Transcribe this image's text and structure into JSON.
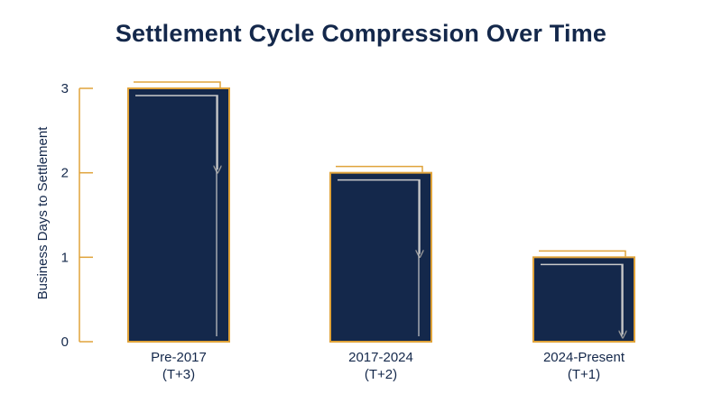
{
  "chart_data": {
    "type": "bar",
    "title": "Settlement Cycle Compression Over Time",
    "ylabel": "Business Days to Settlement",
    "xlabel": "",
    "ylim": [
      0,
      3
    ],
    "yticks": [
      "0",
      "1",
      "2",
      "3"
    ],
    "categories": [
      [
        "Pre-2017",
        "(T+3)"
      ],
      [
        "2017-2024",
        "(T+2)"
      ],
      [
        "2024-Present",
        "(T+1)"
      ]
    ],
    "values": [
      3,
      2,
      1
    ],
    "grid": false,
    "legend": "none",
    "colors": {
      "bar_fill": "#14284b",
      "bar_outline": "#e0a33a",
      "accent_line": "#e0a33a",
      "inner_line": "#c9c9c9",
      "text": "#14284b"
    }
  }
}
